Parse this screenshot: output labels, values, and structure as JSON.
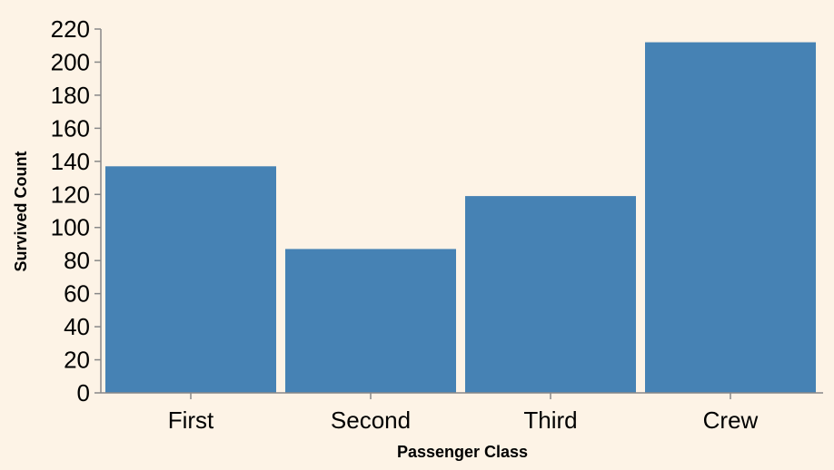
{
  "chart_data": {
    "type": "bar",
    "title": "",
    "xlabel": "Passenger Class",
    "ylabel": "Survived Count",
    "categories": [
      "First",
      "Second",
      "Third",
      "Crew"
    ],
    "values": [
      137,
      87,
      119,
      212
    ],
    "ylim": [
      0,
      220
    ],
    "yticks": [
      0,
      20,
      40,
      60,
      80,
      100,
      120,
      140,
      160,
      180,
      200,
      220
    ],
    "grid": false,
    "colors": {
      "bar": "#4682b4",
      "background": "#fdf3e6",
      "axis": "#888888"
    }
  }
}
